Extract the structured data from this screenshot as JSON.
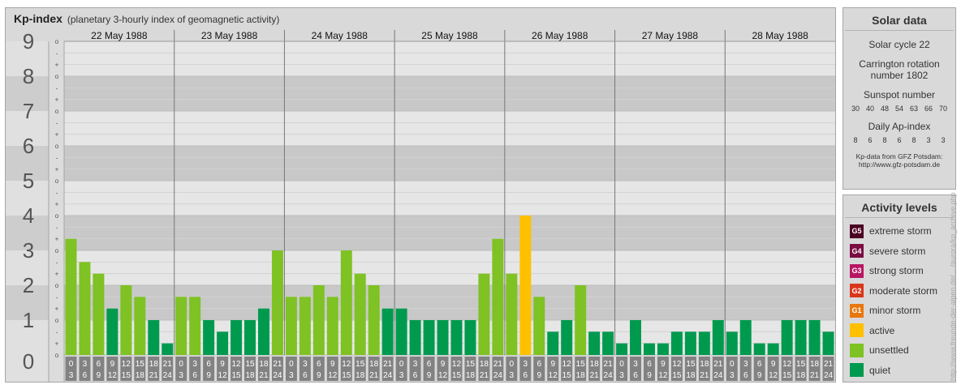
{
  "header": {
    "title": "Kp-index",
    "subtitle": "(planetary 3-hourly index of geomagnetic activity)"
  },
  "chart_data": {
    "type": "bar",
    "ylim": [
      0,
      9
    ],
    "y_ticks": [
      "0",
      "1",
      "2",
      "3",
      "4",
      "5",
      "6",
      "7",
      "8",
      "9"
    ],
    "minor_tick_labels": [
      "o",
      "+",
      "-"
    ],
    "days": [
      "22 May 1988",
      "23 May 1988",
      "24 May 1988",
      "25 May 1988",
      "26 May 1988",
      "27 May 1988",
      "28 May 1988"
    ],
    "interval_starts": [
      "0",
      "3",
      "6",
      "9",
      "12",
      "15",
      "18",
      "21"
    ],
    "interval_ends": [
      "3",
      "6",
      "9",
      "12",
      "15",
      "18",
      "21",
      "24"
    ],
    "values": [
      3.333,
      2.667,
      2.333,
      1.333,
      2.0,
      1.667,
      1.0,
      0.333,
      1.667,
      1.667,
      1.0,
      0.667,
      1.0,
      1.0,
      1.333,
      3.0,
      1.667,
      1.667,
      2.0,
      1.667,
      3.0,
      2.333,
      2.0,
      1.333,
      1.333,
      1.0,
      1.0,
      1.0,
      1.0,
      1.0,
      2.333,
      3.333,
      2.333,
      4.0,
      1.667,
      0.667,
      1.0,
      2.0,
      0.667,
      0.667,
      0.333,
      1.0,
      0.333,
      0.333,
      0.667,
      0.667,
      0.667,
      1.0,
      0.667,
      1.0,
      0.333,
      0.333,
      1.0,
      1.0,
      1.0,
      0.667
    ],
    "level_colors": {
      "quiet": "#009a4e",
      "unsettled": "#7ec223",
      "active": "#ffc000",
      "G1": "#e8780e",
      "G2": "#d9361b",
      "G3": "#b81663",
      "G4": "#7a0c42",
      "G5": "#4a0022"
    }
  },
  "solar": {
    "heading": "Solar data",
    "cycle": "Solar cycle 22",
    "carrington_line1": "Carrington rotation",
    "carrington_line2": "number 1802",
    "sunspot_label": "Sunspot number",
    "sunspot_values": [
      "30",
      "40",
      "48",
      "54",
      "63",
      "66",
      "70"
    ],
    "ap_label": "Daily Ap-index",
    "ap_values": [
      "8",
      "6",
      "8",
      "6",
      "8",
      "3",
      "3"
    ],
    "source_line1": "Kp-data from GFZ Potsdam:",
    "source_line2": "http://www.gfz-potsdam.de"
  },
  "activity": {
    "heading": "Activity levels",
    "items": [
      {
        "badge": "G5",
        "label": "extreme storm",
        "color": "#4a0022"
      },
      {
        "badge": "G4",
        "label": "severe storm",
        "color": "#7a0c42"
      },
      {
        "badge": "G3",
        "label": "strong storm",
        "color": "#b81663"
      },
      {
        "badge": "G2",
        "label": "moderate storm",
        "color": "#d9361b"
      },
      {
        "badge": "G1",
        "label": "minor storm",
        "color": "#e8780e"
      },
      {
        "badge": "",
        "label": "active",
        "color": "#ffc000"
      },
      {
        "badge": "",
        "label": "unsettled",
        "color": "#7ec223"
      },
      {
        "badge": "",
        "label": "quiet",
        "color": "#009a4e"
      }
    ]
  },
  "watermark": "http://www.freunde-der-alpen.de/..../aurora/kp_archive.php"
}
